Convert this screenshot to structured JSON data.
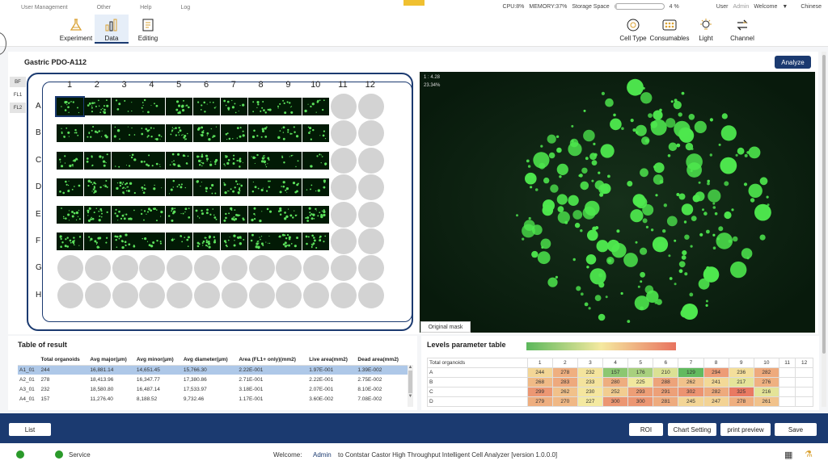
{
  "topbar": {
    "menu": [
      "User Management",
      "Other",
      "Help",
      "Log"
    ],
    "cpu": "CPU:8%",
    "memory": "MEMORY:37%",
    "storage_label": "Storage Space",
    "storage_pct": "4 %",
    "storage_value": 0.04,
    "user_label": "User",
    "user_name": "Admin",
    "welcome": "Welcome",
    "language": "Chinese"
  },
  "toolbar": {
    "experiment": "Experiment",
    "data": "Data",
    "editing": "Editing",
    "cell_type": "Cell Type",
    "consumables": "Consumables",
    "light": "Light",
    "channel": "Channel"
  },
  "panel": {
    "title": "Gastric PDO-A112",
    "analyze": "Analyze",
    "channels": [
      "BF",
      "FL1",
      "FL2"
    ],
    "cols": [
      "1",
      "2",
      "3",
      "4",
      "5",
      "6",
      "7",
      "8",
      "9",
      "10",
      "11",
      "12"
    ],
    "rows": [
      "A",
      "B",
      "C",
      "D",
      "E",
      "F",
      "G",
      "H"
    ],
    "image_rows": 6,
    "image_cols": 10
  },
  "micro": {
    "ratio": "1 : 4.28",
    "pct": "23.34%",
    "mask_button": "Original mask"
  },
  "result": {
    "title": "Table of result",
    "headers": [
      "",
      "Total organoids",
      "Avg major(µm)",
      "Avg minor(µm)",
      "Avg diameter(µm)",
      "Area (FL1+ only)(mm2)",
      "Live area(mm2)",
      "Dead area(mm2)"
    ],
    "rows": [
      [
        "A1_01",
        "244",
        "16,881.14",
        "14,651.45",
        "15,766.30",
        "2.22E-001",
        "1.97E-001",
        "1.39E-002"
      ],
      [
        "A2_01",
        "278",
        "18,413.96",
        "16,347.77",
        "17,380.86",
        "2.71E-001",
        "2.22E-001",
        "2.75E-002"
      ],
      [
        "A3_01",
        "232",
        "18,580.80",
        "16,487.14",
        "17,533.97",
        "3.18E-001",
        "2.07E-001",
        "8.10E-002"
      ],
      [
        "A4_01",
        "157",
        "11,276.40",
        "8,188.52",
        "9,732.46",
        "1.17E-001",
        "3.60E-002",
        "7.08E-002"
      ]
    ]
  },
  "levels": {
    "title": "Levels parameter table",
    "row_header": "Total organoids",
    "cols": [
      "1",
      "2",
      "3",
      "4",
      "5",
      "6",
      "7",
      "8",
      "9",
      "10",
      "11",
      "12"
    ],
    "rows": [
      {
        "name": "A",
        "values": [
          "244",
          "278",
          "232",
          "157",
          "176",
          "210",
          "129",
          "294",
          "236",
          "282",
          "",
          ""
        ]
      },
      {
        "name": "B",
        "values": [
          "268",
          "283",
          "233",
          "280",
          "225",
          "288",
          "262",
          "241",
          "217",
          "276",
          "",
          ""
        ]
      },
      {
        "name": "C",
        "values": [
          "299",
          "262",
          "230",
          "252",
          "293",
          "291",
          "302",
          "282",
          "325",
          "216",
          "",
          ""
        ]
      },
      {
        "name": "D",
        "values": [
          "279",
          "270",
          "227",
          "300",
          "300",
          "281",
          "245",
          "247",
          "278",
          "261",
          "",
          ""
        ]
      }
    ],
    "colors": {
      "low": "#5cb85c",
      "mid": "#f5e9a0",
      "high": "#e8735f"
    }
  },
  "footer": {
    "list": "List",
    "roi": "ROI",
    "chart_setting": "Chart Setting",
    "print_preview": "print preview",
    "save": "Save"
  },
  "status": {
    "service": "Service",
    "welcome_label": "Welcome:",
    "user": "Admin",
    "message": "to Contstar Castor High Throughput Intelligent Cell Analyzer [version 1.0.0.0]"
  }
}
